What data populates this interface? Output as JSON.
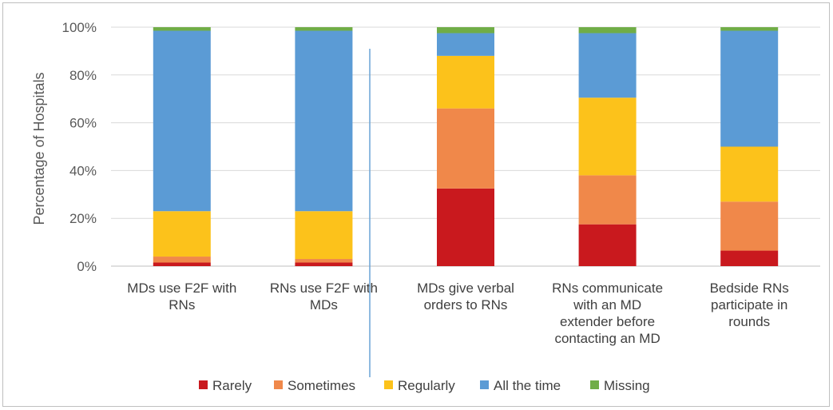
{
  "chart_data": {
    "type": "stacked-bar",
    "ylabel": "Percentage of Hospitals",
    "ylim": [
      0,
      100
    ],
    "yticks": [
      "0%",
      "20%",
      "40%",
      "60%",
      "80%",
      "100%"
    ],
    "grid": true,
    "legend_position": "bottom",
    "categories": [
      [
        "MDs use F2F with",
        "RNs"
      ],
      [
        "RNs use F2F with",
        "MDs"
      ],
      [
        "MDs give verbal",
        "orders to RNs"
      ],
      [
        "RNs communicate",
        "with an MD",
        "extender before",
        "contacting an MD"
      ],
      [
        "Bedside RNs",
        "participate in",
        "rounds"
      ]
    ],
    "series": [
      {
        "name": "Rarely",
        "color": "#c9191e",
        "values": [
          1.5,
          1.5,
          32.5,
          17.5,
          6.5
        ]
      },
      {
        "name": "Sometimes",
        "color": "#f0884a",
        "values": [
          2.5,
          1.5,
          33.5,
          20.5,
          20.5
        ]
      },
      {
        "name": "Regularly",
        "color": "#fcc21b",
        "values": [
          19,
          20,
          22,
          32.5,
          23
        ]
      },
      {
        "name": "All the time",
        "color": "#5b9bd5",
        "values": [
          75.5,
          75.5,
          9.5,
          27,
          48.5
        ]
      },
      {
        "name": "Missing",
        "color": "#70ad47",
        "values": [
          1.5,
          1.5,
          2.5,
          2.5,
          1.5
        ]
      }
    ]
  }
}
